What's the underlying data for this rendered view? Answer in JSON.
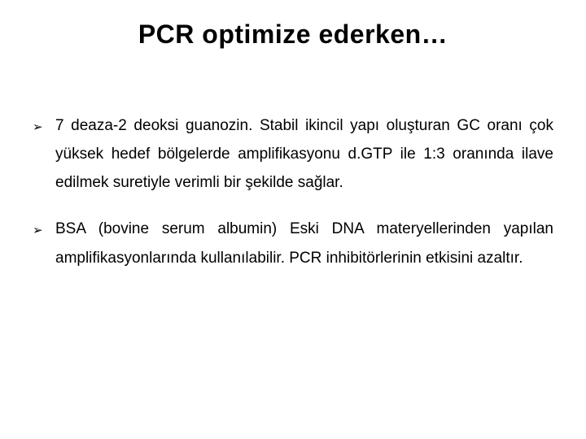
{
  "slide": {
    "title": "PCR optimize ederken…",
    "bullets": [
      {
        "text": "7 deaza-2 deoksi guanozin. Stabil ikincil yapı oluşturan GC oranı çok yüksek hedef bölgelerde amplifikasyonu d.GTP ile 1:3 oranında ilave edilmek suretiyle verimli bir şekilde sağlar."
      },
      {
        "text": "BSA (bovine serum albumin) Eski DNA materyellerinden yapılan amplifikasyonlarında kullanılabilir. PCR inhibitörlerinin etkisini azaltır."
      }
    ],
    "bullet_glyph": "➢"
  },
  "style": {
    "background_color": "#ffffff",
    "text_color": "#000000",
    "title_fontsize": 32,
    "body_fontsize": 19,
    "font_family": "Comic Sans MS"
  }
}
